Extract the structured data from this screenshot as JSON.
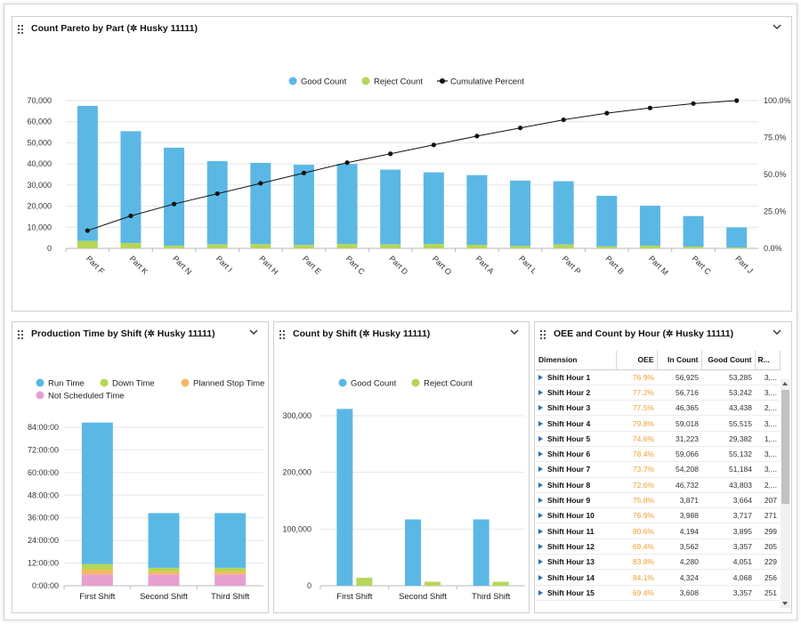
{
  "panels": {
    "pareto": {
      "title": "Count Pareto by Part (",
      "title_tail": " Husky 11111)",
      "icon": "gear-icon",
      "menu_icon": "chevron-down-icon",
      "chart_data": {
        "type": "bar",
        "stacked": true,
        "categories": [
          "Part F",
          "Part K",
          "Part N",
          "Part I",
          "Part H",
          "Part E",
          "Part C",
          "Part D",
          "Part O",
          "Part A",
          "Part L",
          "Part P",
          "Part B",
          "Part M",
          "Part C",
          "Part J"
        ],
        "series": [
          {
            "name": "Good Count",
            "color": "#5bb8e4",
            "values": [
              64000,
              53000,
              46500,
              39500,
              38500,
              38000,
              38000,
              35500,
              34000,
              33000,
              31000,
              30000,
              24000,
              19000,
              14500,
              9500
            ]
          },
          {
            "name": "Reject Count",
            "color": "#b5d657",
            "values": [
              3500,
              2500,
              1200,
              1800,
              2000,
              1600,
              2000,
              1800,
              2000,
              1700,
              1100,
              1800,
              900,
              1200,
              800,
              400
            ]
          },
          {
            "name": "Cumulative Percent",
            "color": "#111111",
            "axis": "right",
            "values": [
              12,
              22,
              30,
              37,
              44,
              51,
              58,
              64,
              70,
              76,
              81.5,
              87,
              91.5,
              95,
              98,
              100
            ]
          }
        ],
        "y_ticks": [
          "70,000",
          "60,000",
          "50,000",
          "40,000",
          "30,000",
          "20,000",
          "10,000",
          "0"
        ],
        "ylim": [
          0,
          70000
        ],
        "y2_ticks": [
          "100.0%",
          "75.0%",
          "50.0%",
          "25.0%",
          "0.0%"
        ],
        "y2lim": [
          0,
          100
        ],
        "legend_position": "top-center",
        "grid": true
      }
    },
    "production": {
      "title": "Production Time by Shift (",
      "title_tail": " Husky 11111)",
      "icon": "gear-icon",
      "menu_icon": "chevron-down-icon",
      "chart_data": {
        "type": "bar",
        "stacked": true,
        "categories": [
          "First Shift",
          "Second Shift",
          "Third Shift"
        ],
        "series": [
          {
            "name": "Run Time",
            "color": "#5bb8e4",
            "values": [
              75,
              29,
              29
            ]
          },
          {
            "name": "Down Time",
            "color": "#b5d657",
            "values": [
              3,
              2,
              2
            ]
          },
          {
            "name": "Planned Stop Time",
            "color": "#f4b860",
            "values": [
              2.5,
              1.5,
              1.5
            ]
          },
          {
            "name": "Not Scheduled Time",
            "color": "#e79fd0",
            "values": [
              6,
              6,
              6
            ]
          }
        ],
        "y_ticks": [
          "84:00:00",
          "72:00:00",
          "60:00:00",
          "48:00:00",
          "36:00:00",
          "24:00:00",
          "12:00:00",
          "0:00:00"
        ],
        "ylim": [
          0,
          84
        ],
        "legend_position": "top-left",
        "grid": true
      }
    },
    "count_shift": {
      "title": "Count by Shift (",
      "title_tail": " Husky 11111)",
      "icon": "gear-icon",
      "menu_icon": "chevron-down-icon",
      "chart_data": {
        "type": "bar",
        "categories": [
          "First Shift",
          "Second Shift",
          "Third Shift"
        ],
        "series": [
          {
            "name": "Good Count",
            "color": "#5bb8e4",
            "values": [
              312000,
              117000,
              117000
            ]
          },
          {
            "name": "Reject Count",
            "color": "#b5d657",
            "values": [
              14000,
              7000,
              7000
            ]
          }
        ],
        "y_ticks": [
          "300,000",
          "200,000",
          "100,000",
          "0"
        ],
        "ylim": [
          0,
          300000
        ],
        "legend_position": "top-center",
        "grid": true
      }
    },
    "oee": {
      "title": "OEE and Count by Hour (",
      "title_tail": " Husky 11111)",
      "icon": "gear-icon",
      "menu_icon": "chevron-down-icon",
      "columns": [
        "Dimension",
        "OEE",
        "In Count",
        "Good Count",
        "R..."
      ],
      "rows": [
        [
          "Shift Hour 1",
          "76.9%",
          "56,925",
          "53,285",
          "3,..."
        ],
        [
          "Shift Hour 2",
          "77.2%",
          "56,716",
          "53,242",
          "3,..."
        ],
        [
          "Shift Hour 3",
          "77.5%",
          "46,365",
          "43,438",
          "2,..."
        ],
        [
          "Shift Hour 4",
          "79.8%",
          "59,018",
          "55,515",
          "3,..."
        ],
        [
          "Shift Hour 5",
          "74.6%",
          "31,223",
          "29,382",
          "1,..."
        ],
        [
          "Shift Hour 6",
          "78.4%",
          "59,066",
          "55,132",
          "3,..."
        ],
        [
          "Shift Hour 7",
          "73.7%",
          "54,208",
          "51,184",
          "3,..."
        ],
        [
          "Shift Hour 8",
          "72.6%",
          "46,732",
          "43,803",
          "2,..."
        ],
        [
          "Shift Hour 9",
          "75.8%",
          "3,871",
          "3,664",
          "207"
        ],
        [
          "Shift Hour 10",
          "76.9%",
          "3,988",
          "3,717",
          "271"
        ],
        [
          "Shift Hour 11",
          "80.6%",
          "4,194",
          "3,895",
          "299"
        ],
        [
          "Shift Hour 12",
          "69.4%",
          "3,562",
          "3,357",
          "205"
        ],
        [
          "Shift Hour 13",
          "83.8%",
          "4,280",
          "4,051",
          "229"
        ],
        [
          "Shift Hour 14",
          "84.1%",
          "4,324",
          "4,068",
          "256"
        ],
        [
          "Shift Hour 15",
          "69.4%",
          "3,608",
          "3,357",
          "251"
        ]
      ]
    }
  }
}
